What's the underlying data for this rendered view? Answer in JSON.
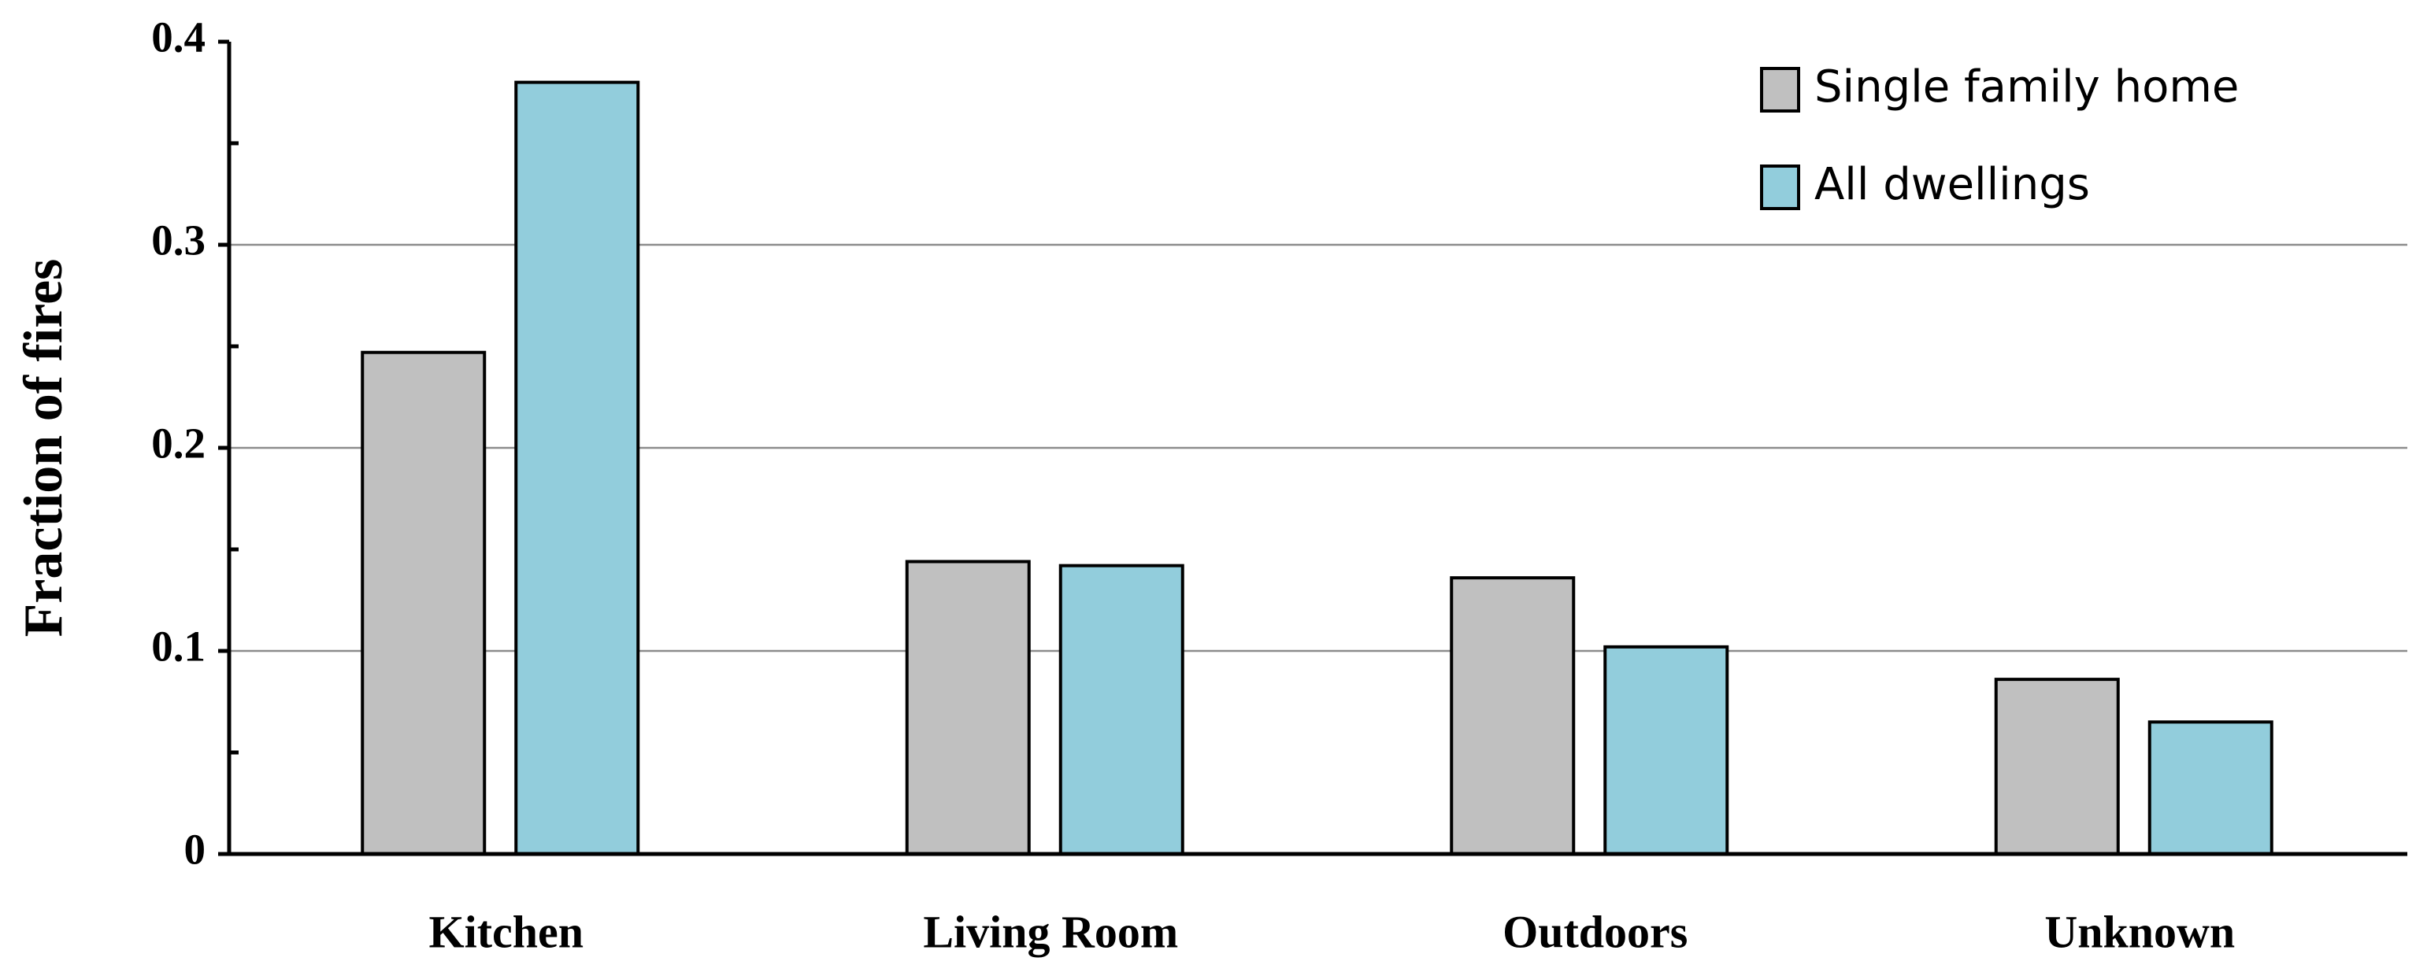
{
  "chart_data": {
    "type": "bar",
    "y_label": "Fraction of fires",
    "categories": [
      "Kitchen",
      "Living Room",
      "Outdoors",
      "Unknown"
    ],
    "series": [
      {
        "name": "Single family home",
        "color": "#c0c0c0",
        "values": [
          0.247,
          0.144,
          0.136,
          0.086
        ]
      },
      {
        "name": "All dwellings",
        "color": "#92cddc",
        "values": [
          0.38,
          0.142,
          0.102,
          0.065
        ]
      }
    ],
    "ylim": [
      0,
      0.4
    ],
    "yticks": [
      0,
      0.1,
      0.2,
      0.3,
      0.4
    ],
    "minor_yticks": [
      0.05,
      0.15,
      0.25,
      0.35
    ],
    "grid": true,
    "legend": "top-right"
  }
}
